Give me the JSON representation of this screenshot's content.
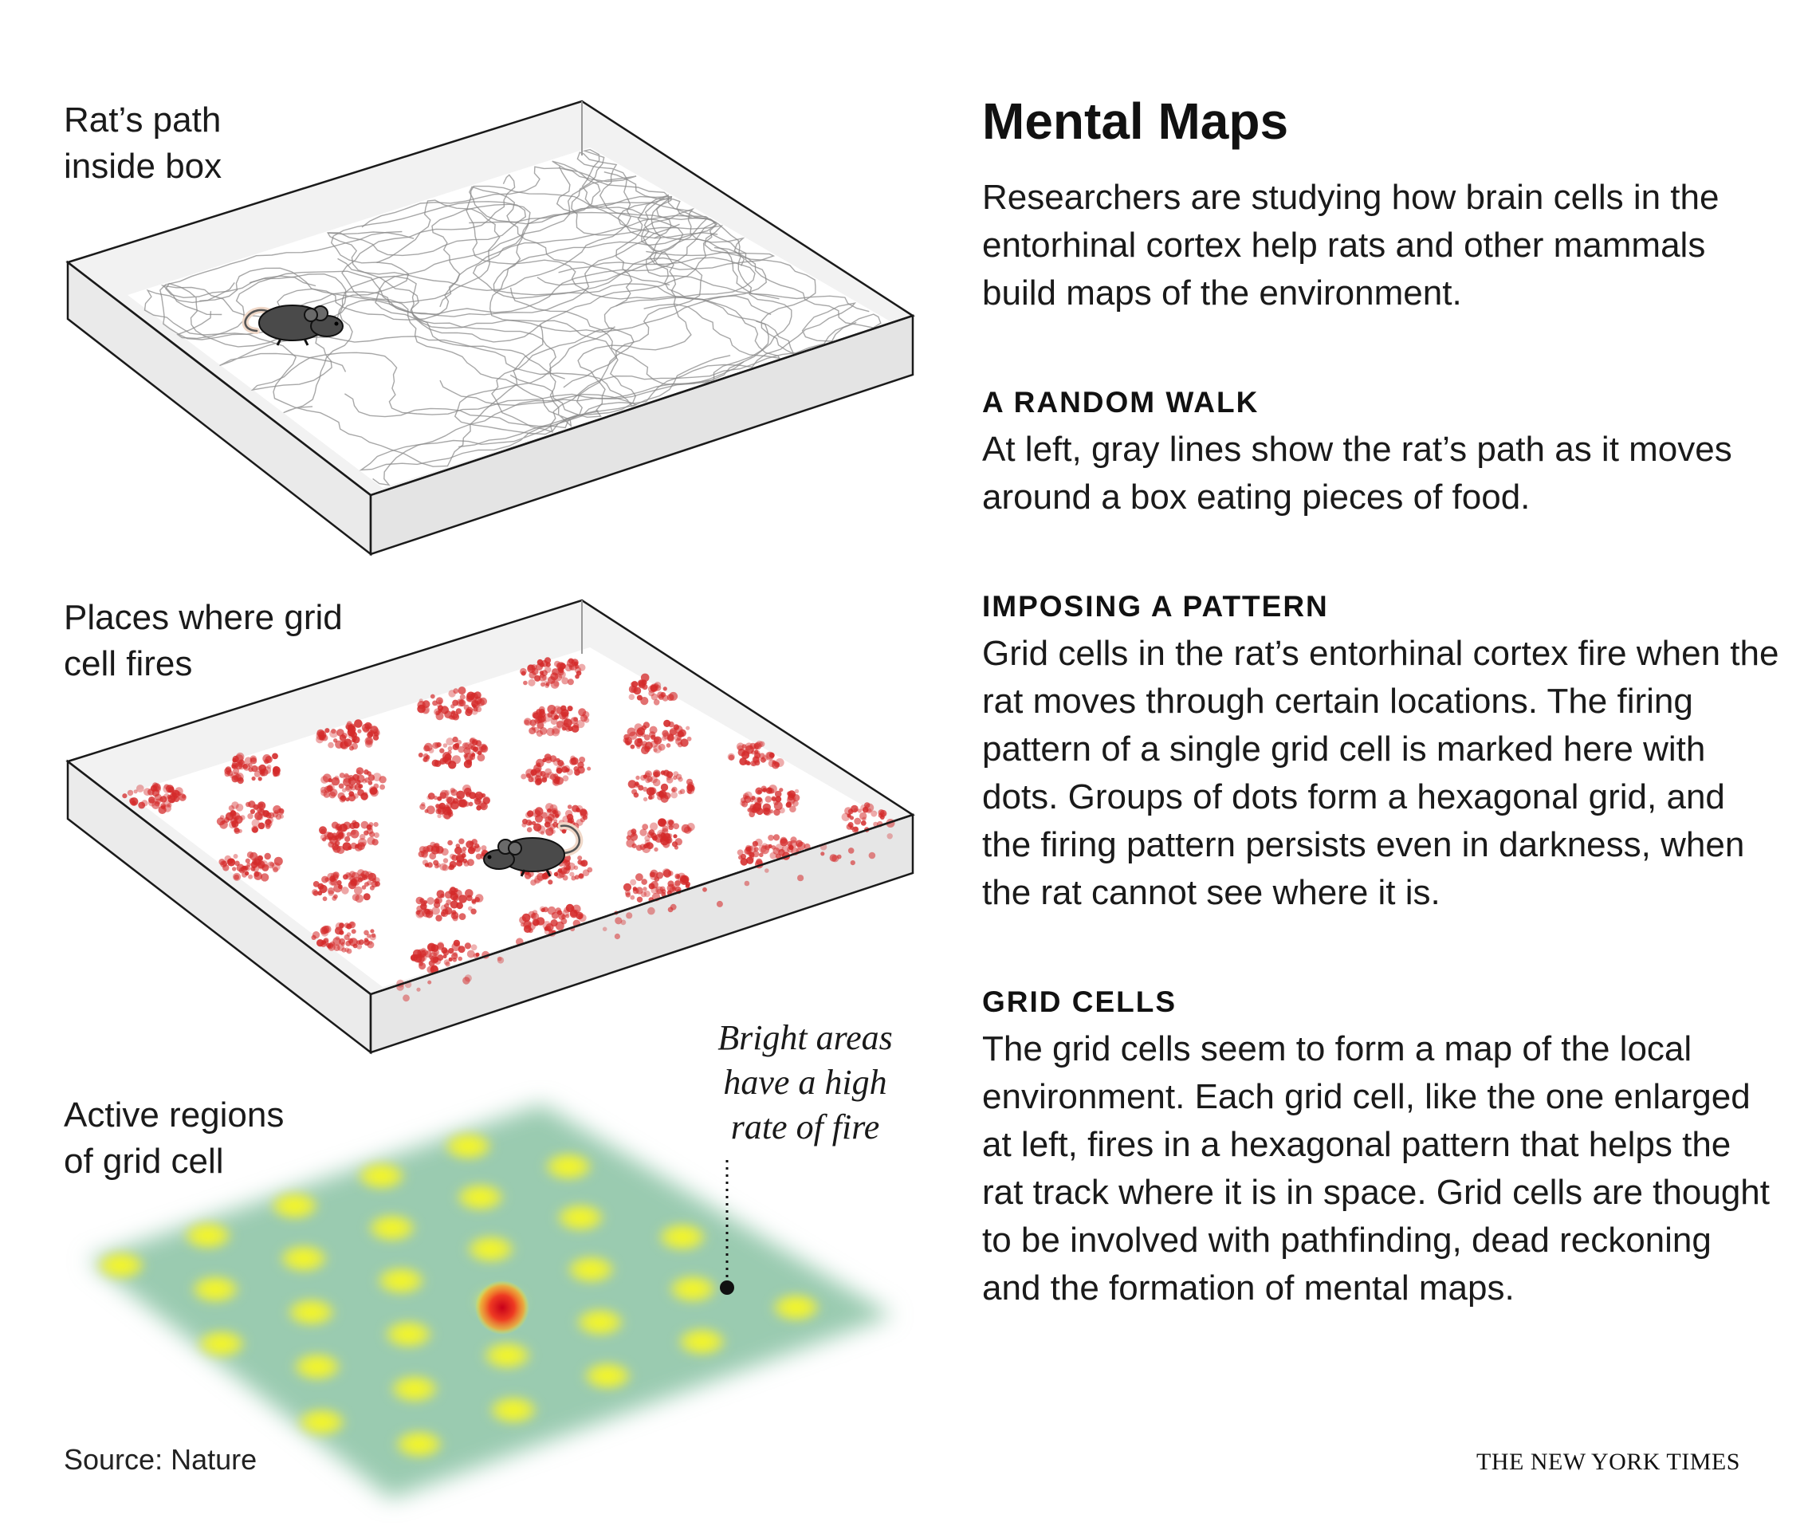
{
  "title": "Mental Maps",
  "intro": "Researchers are studying how brain cells in the entorhinal cortex help rats and other mammals build maps of the environment.",
  "sections": [
    {
      "heading": "A RANDOM WALK",
      "body": "At left, gray lines show the rat’s path as it moves around a box eating pieces of food."
    },
    {
      "heading": "IMPOSING A PATTERN",
      "body": "Grid cells in the rat’s entorhinal cortex fire when the rat moves through certain locations. The firing pattern of a single grid cell is marked here with dots. Groups of dots form a hexagonal grid, and the firing pattern persists even in darkness, when the rat cannot see where it is."
    },
    {
      "heading": "GRID CELLS",
      "body": "The grid cells seem to form a map of the local environment. Each grid cell, like the one enlarged at left, fires in a hexagonal pattern that helps the rat track where it is in space. Grid cells are thought to be involved with pathfinding, dead reckoning and the formation of mental maps."
    }
  ],
  "panels": {
    "path_label": [
      "Rat’s path",
      "inside box"
    ],
    "fire_label": [
      "Places where grid",
      "cell fires"
    ],
    "active_label": [
      "Active regions",
      "of grid cell"
    ]
  },
  "annotation": [
    "Bright areas",
    "have a high",
    "rate of fire"
  ],
  "source": "Source: Nature",
  "credit": "THE NEW YORK TIMES",
  "colors": {
    "path_line": "#8a8a8a",
    "fire_dot": "#d42a2a",
    "heat_low": "#8fc6b4",
    "heat_high": "#f2f22a",
    "heat_peak": "#d8141a"
  }
}
